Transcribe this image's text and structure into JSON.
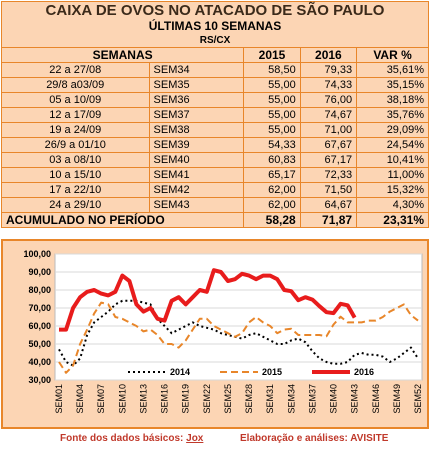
{
  "table": {
    "title": "CAIXA DE OVOS NO ATACADO DE SÃO PAULO",
    "subtitle": "ÚLTIMAS 10 SEMANAS",
    "unit": "RS/CX",
    "header": [
      "SEMANAS",
      "2015",
      "2016",
      "VAR %"
    ],
    "rows": [
      [
        "22 a 27/08",
        "SEM34",
        "58,50",
        "79,33",
        "35,61%"
      ],
      [
        "29/8 a03/09",
        "SEM35",
        "55,00",
        "74,33",
        "35,15%"
      ],
      [
        "05 a 10/09",
        "SEM36",
        "55,00",
        "76,00",
        "38,18%"
      ],
      [
        "12 a 17/09",
        "SEM37",
        "55,00",
        "74,67",
        "35,76%"
      ],
      [
        "19 a 24/09",
        "SEM38",
        "55,00",
        "71,00",
        "29,09%"
      ],
      [
        "26/9 a 01/10",
        "SEM39",
        "54,33",
        "67,67",
        "24,54%"
      ],
      [
        "03 a 08/10",
        "SEM40",
        "60,83",
        "67,17",
        "10,41%"
      ],
      [
        "10 a 15/10",
        "SEM41",
        "65,17",
        "72,33",
        "11,00%"
      ],
      [
        "17 a 22/10",
        "SEM42",
        "62,00",
        "71,50",
        "15,32%"
      ],
      [
        "24 a 29/10",
        "SEM43",
        "62,00",
        "64,67",
        "4,30%"
      ]
    ],
    "total": [
      "ACUMULADO NO PERÍODO",
      "58,28",
      "71,87",
      "23,31%"
    ]
  },
  "chart_data": {
    "type": "line",
    "categories": [
      "SEM01",
      null,
      null,
      "SEM04",
      null,
      null,
      "SEM07",
      null,
      null,
      "SEM10",
      null,
      null,
      "SEM13",
      null,
      null,
      "SEM16",
      null,
      null,
      "SEM19",
      null,
      null,
      "SEM22",
      null,
      null,
      "SEM25",
      null,
      null,
      "SEM28",
      null,
      null,
      "SEM31",
      null,
      null,
      "SEM34",
      null,
      null,
      "SEM37",
      null,
      null,
      "SEM40",
      null,
      null,
      "SEM43",
      null,
      null,
      "SEM46",
      null,
      null,
      "SEM49",
      null,
      null,
      "SEM52"
    ],
    "ylim": [
      30,
      100
    ],
    "yticks": [
      {
        "value": 30,
        "label": "30,00"
      },
      {
        "value": 40,
        "label": "40,00"
      },
      {
        "value": 50,
        "label": "50,00"
      },
      {
        "value": 60,
        "label": "60,00"
      },
      {
        "value": 70,
        "label": "70,00"
      },
      {
        "value": 80,
        "label": "80,00"
      },
      {
        "value": 90,
        "label": "90,00"
      },
      {
        "value": 100,
        "label": "100,00"
      }
    ],
    "grid": true,
    "series": [
      {
        "name": "2014",
        "color": "#000000",
        "dash": "2,3",
        "values": [
          47,
          40,
          38,
          42,
          55,
          62,
          65,
          68,
          72,
          74,
          74,
          74,
          73,
          72,
          64,
          60,
          56,
          58,
          60,
          62,
          60,
          59,
          58,
          56,
          55,
          54,
          53,
          55,
          56,
          54,
          52,
          50,
          50,
          52,
          53,
          51,
          46,
          42,
          40,
          39,
          39,
          40,
          44,
          45,
          44,
          44,
          43,
          40,
          42,
          45,
          48,
          42
        ]
      },
      {
        "name": "2015",
        "color": "#e8862a",
        "dash": "7,4",
        "values": [
          40,
          34,
          38,
          50,
          58,
          67,
          73,
          72,
          65,
          64,
          62,
          60,
          57,
          58,
          55,
          50,
          50,
          48,
          52,
          58,
          64,
          64,
          60,
          58,
          56,
          54,
          56,
          62,
          65,
          62,
          60,
          56,
          58,
          58.5,
          55,
          55,
          55,
          55,
          54.33,
          60.83,
          65.17,
          62,
          62,
          62,
          63,
          63,
          65,
          68,
          70,
          72,
          66,
          63
        ]
      },
      {
        "name": "2016",
        "color": "#e81c1c",
        "dash": "",
        "values": [
          58,
          58,
          70,
          76,
          79,
          80,
          78,
          77,
          79,
          88,
          85,
          72,
          68,
          70,
          64,
          63,
          74,
          76,
          72,
          76,
          80,
          79,
          91,
          90,
          85,
          86,
          89,
          88,
          86,
          88,
          88,
          86,
          80,
          79.33,
          74.33,
          76,
          74.67,
          71,
          67.67,
          67.17,
          72.33,
          71.5,
          64.67,
          null,
          null,
          null,
          null,
          null,
          null,
          null,
          null,
          null
        ]
      }
    ]
  },
  "footer": {
    "source_label": "Fonte dos dados básicos:",
    "source": "Jox",
    "credit": "Elaboração e análises: AVISITE"
  }
}
